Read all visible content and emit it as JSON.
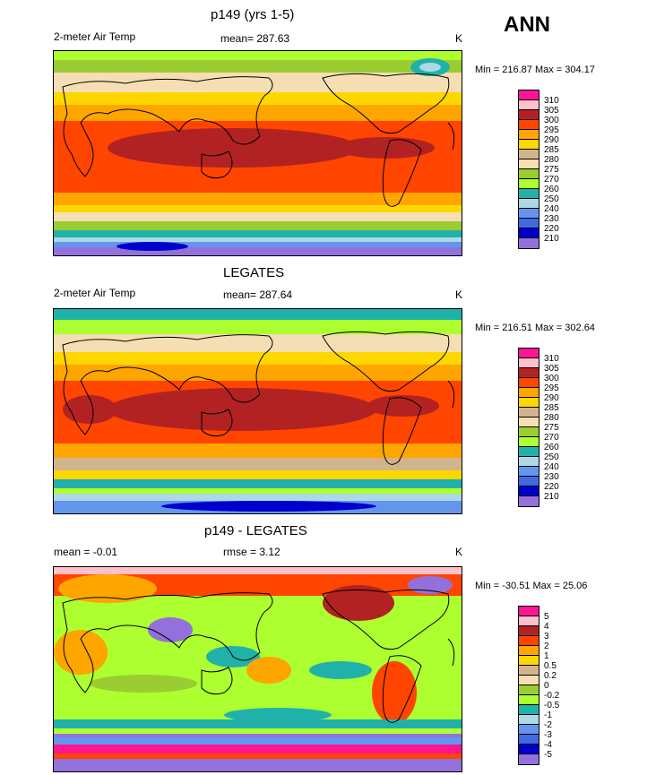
{
  "ann": "ANN",
  "panels": [
    {
      "title": "p149 (yrs 1-5)",
      "left": "2-meter Air Temp",
      "center": "mean= 287.63",
      "unit": "K",
      "minmax": "Min = 216.87 Max = 304.17",
      "levels": [
        "310",
        "305",
        "300",
        "295",
        "290",
        "285",
        "280",
        "275",
        "270",
        "260",
        "250",
        "240",
        "230",
        "220",
        "210"
      ]
    },
    {
      "title": "LEGATES",
      "left": "2-meter Air Temp",
      "center": "mean= 287.64",
      "unit": "K",
      "minmax": "Min = 216.51 Max = 302.64",
      "levels": [
        "310",
        "305",
        "300",
        "295",
        "290",
        "285",
        "280",
        "275",
        "270",
        "260",
        "250",
        "240",
        "230",
        "220",
        "210"
      ]
    },
    {
      "title": "p149 - LEGATES",
      "left": "mean =  -0.01",
      "center": "rmse =   3.12",
      "unit": "K",
      "minmax": "Min = -30.51 Max =  25.06",
      "levels": [
        "5",
        "4",
        "3",
        "2",
        "1",
        "0.5",
        "0.2",
        "0",
        "-0.2",
        "-0.5",
        "-1",
        "-2",
        "-3",
        "-4",
        "-5"
      ]
    }
  ],
  "colors": {
    "palette": [
      "#ff1493",
      "#ffc0cb",
      "#b22222",
      "#ff4500",
      "#ffa500",
      "#ffd700",
      "#d2b48c",
      "#f5deb3",
      "#9acd32",
      "#adff2f",
      "#20b2aa",
      "#add8e6",
      "#6495ed",
      "#4169e1",
      "#0000cd",
      "#9370db"
    ]
  }
}
